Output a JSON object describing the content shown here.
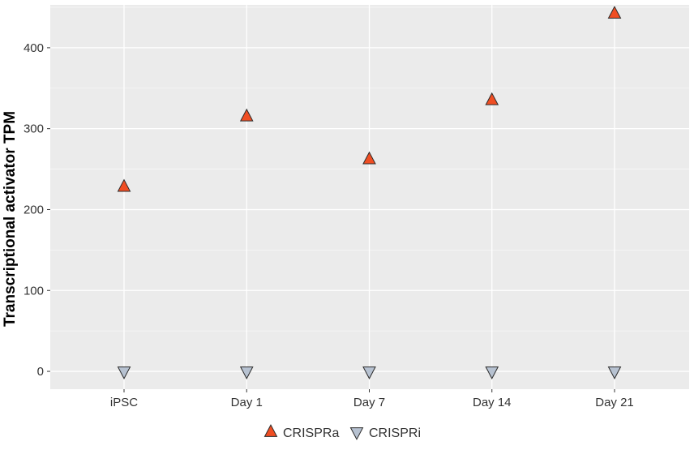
{
  "chart_data": {
    "type": "scatter",
    "title": "",
    "xlabel": "",
    "ylabel": "Transcriptional activator TPM",
    "categories": [
      "iPSC",
      "Day 1",
      "Day 7",
      "Day 14",
      "Day 21"
    ],
    "ylim": [
      -22,
      453
    ],
    "yticks": [
      0,
      100,
      200,
      300,
      400
    ],
    "grid": true,
    "legend_position": "bottom",
    "series": [
      {
        "name": "CRISPRa",
        "marker": "triangle-up",
        "color": "#F04E23",
        "values": [
          228,
          315,
          262,
          335,
          442
        ]
      },
      {
        "name": "CRISPRi",
        "marker": "triangle-down",
        "color": "#B7C2D1",
        "values": [
          0,
          0,
          0,
          0,
          0
        ]
      }
    ]
  }
}
